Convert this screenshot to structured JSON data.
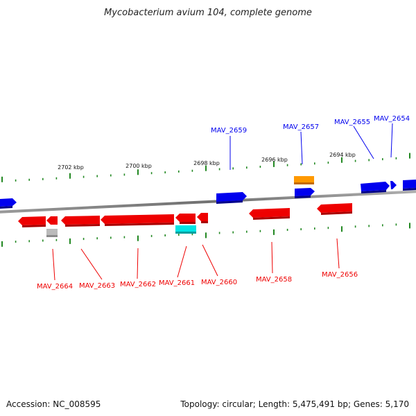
{
  "title": "Mycobacterium avium 104, complete genome",
  "footer": {
    "accession": "Accession: NC_008595",
    "summary": "Topology: circular; Length: 5,475,491 bp; Genes: 5,170"
  },
  "colors": {
    "plus_strand": "#0000ee",
    "minus_strand": "#ee0000",
    "rna": "#00e5e5",
    "misc": "#ff9900",
    "pseudo": "#bbbbbb",
    "backbone": "#808080",
    "tick": "#228822"
  },
  "scale": {
    "upper_ticks": [
      {
        "label": "2702 kbp"
      },
      {
        "label": "2700 kbp"
      },
      {
        "label": "2698 kbp"
      },
      {
        "label": "2696 kbp"
      },
      {
        "label": "2694 kbp"
      }
    ]
  },
  "labels": {
    "top": [
      "MAV_2659",
      "MAV_2657",
      "MAV_2655",
      "MAV_2654"
    ],
    "bottom": [
      "MAV_2664",
      "MAV_2663",
      "MAV_2662",
      "MAV_2661",
      "MAV_2660",
      "MAV_2658",
      "MAV_2656"
    ]
  }
}
